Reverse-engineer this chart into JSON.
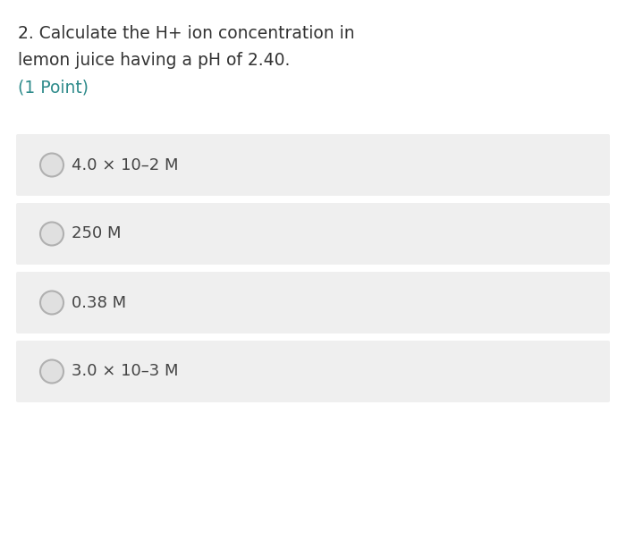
{
  "title_line1": "2. Calculate the H+ ion concentration in",
  "title_line2": "lemon juice having a pH of 2.40.",
  "title_line3": "(1 Point)",
  "title_color": "#333333",
  "point_color": "#2e8b8b",
  "options": [
    "4.0 × 10–2 M",
    "250 M",
    "0.38 M",
    "3.0 × 10–3 M"
  ],
  "bg_color": "#ffffff",
  "option_bg_color": "#efefef",
  "option_text_color": "#444444",
  "circle_edge_color": "#b0b0b0",
  "circle_face_color": "#e0e0e0",
  "font_size_title": 13.5,
  "font_size_options": 13,
  "fig_width": 7.0,
  "fig_height": 6.04,
  "dpi": 100
}
